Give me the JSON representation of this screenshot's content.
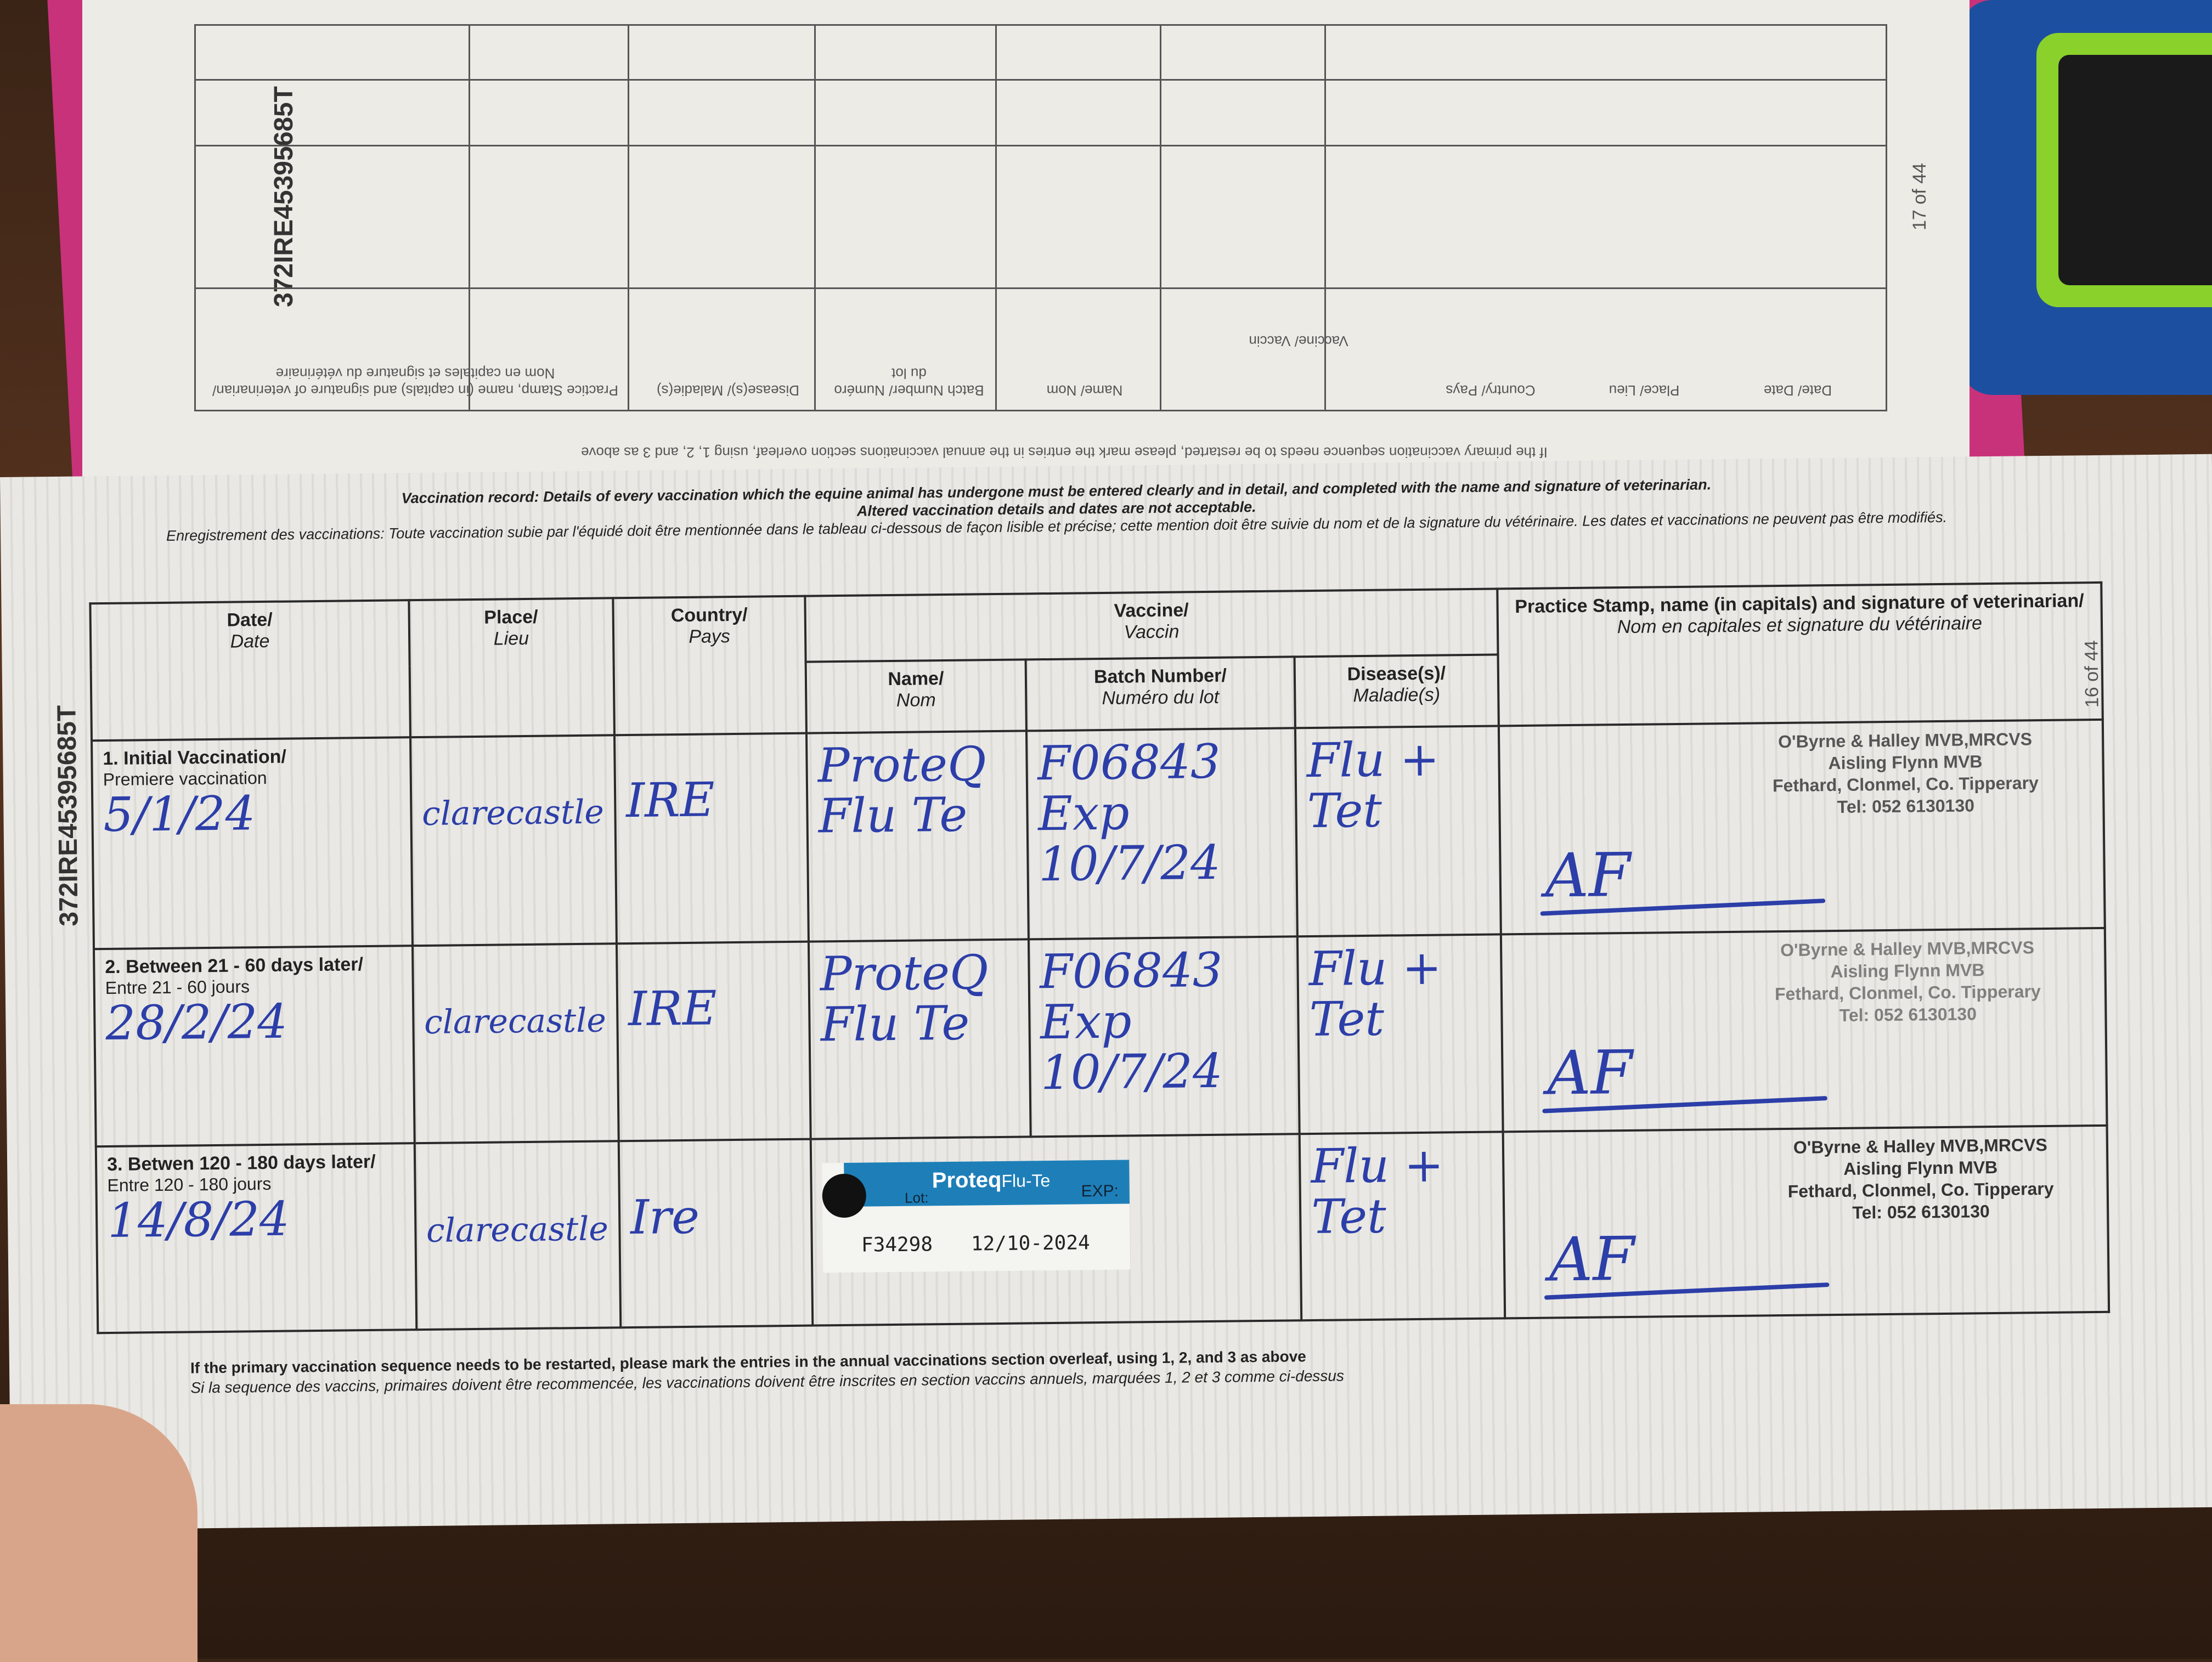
{
  "passport_id": "372IRE45395685T",
  "upper_page": {
    "page_number": "17 of 44",
    "headers": {
      "date": "Date/ Date",
      "place": "Place/ Lieu",
      "country": "Country/ Pays",
      "vaccine": "Vaccine/ Vaccin",
      "name": "Name/ Nom",
      "batch": "Batch Number/ Numéro du lot",
      "disease": "Disease(s)/ Maladie(s)",
      "stamp": "Practice Stamp, name (in capitals) and signature of veterinarian/ Nom en capitales et signature du vétérinaire"
    },
    "footnote": "If the primary vaccination sequence needs to be restarted, please mark the entries in the annual vaccinations section overleaf, using 1, 2, and 3 as above"
  },
  "lower_page": {
    "page_number": "16 of 44",
    "intro_en": "Vaccination record: Details of every vaccination which the equine animal has undergone must be entered clearly and in detail, and completed with the name and signature of veterinarian.",
    "intro_en2": "Altered vaccination details and dates are not acceptable.",
    "intro_fr": "Enregistrement des vaccinations: Toute vaccination subie par l'équidé doit être mentionnée dans le tableau ci-dessous de façon lisible et précise; cette mention doit être suivie du nom et de la signature du vétérinaire. Les dates et vaccinations ne peuvent pas être modifiés.",
    "headers": {
      "date": "Date/",
      "date_fr": "Date",
      "place": "Place/",
      "place_fr": "Lieu",
      "country": "Country/",
      "country_fr": "Pays",
      "vaccine": "Vaccine/",
      "vaccine_fr": "Vaccin",
      "name": "Name/",
      "name_fr": "Nom",
      "batch": "Batch Number/",
      "batch_fr": "Numéro du lot",
      "disease": "Disease(s)/",
      "disease_fr": "Maladie(s)",
      "stamp": "Practice Stamp, name (in capitals) and signature of veterinarian/",
      "stamp_fr": "Nom en capitales et signature du vétérinaire"
    },
    "rows": [
      {
        "label": "1. Initial Vaccination/",
        "label_fr": "Premiere vaccination",
        "date": "5/1/24",
        "place": "clarecastle",
        "country": "IRE",
        "name": "ProteQ Flu Te",
        "batch": "F06843",
        "batch_exp": "Exp 10/7/24",
        "disease": "Flu + Tet",
        "stamp": [
          "O'Byrne & Halley MVB,MRCVS",
          "Aisling Flynn MVB",
          "Fethard, Clonmel, Co. Tipperary",
          "Tel: 052 6130130"
        ],
        "signature": "AF"
      },
      {
        "label": "2. Between 21 - 60 days later/",
        "label_fr": "Entre 21 - 60 jours",
        "date": "28/2/24",
        "place": "clarecastle",
        "country": "IRE",
        "name": "ProteQ Flu Te",
        "batch": "F06843",
        "batch_exp": "Exp 10/7/24",
        "disease": "Flu + Tet",
        "stamp": [
          "O'Byrne & Halley MVB,MRCVS",
          "Aisling Flynn MVB",
          "Fethard, Clonmel, Co. Tipperary",
          "Tel: 052 6130130"
        ],
        "signature": "AF"
      },
      {
        "label": "3. Betwen 120 - 180 days later/",
        "label_fr": "Entre 120 - 180 jours",
        "date": "14/8/24",
        "place": "clarecastle",
        "country": "Ire",
        "disease": "Flu + Tet",
        "sticker": {
          "brand": "Proteq",
          "product": "Flu-Te",
          "lot_label": "Lot:",
          "exp_label": "EXP:",
          "lot": "F34298",
          "exp": "12/10-2024"
        },
        "stamp": [
          "O'Byrne & Halley MVB,MRCVS",
          "Aisling Flynn MVB",
          "Fethard, Clonmel, Co. Tipperary",
          "Tel: 052 6130130"
        ],
        "signature": "AF"
      }
    ],
    "footnote_en": "If the primary vaccination sequence needs to be restarted, please mark the entries in the annual vaccinations section overleaf, using 1, 2, and 3 as above",
    "footnote_fr": "Si la sequence des vaccins, primaires doivent être recommencée, les vaccinations doivent être inscrites en section vaccins annuels, marquées 1, 2 et 3 comme ci-dessus"
  },
  "colors": {
    "ink": "#2c3ea8",
    "sticker_band": "#1e7fb8",
    "cover": "#c8327a"
  }
}
